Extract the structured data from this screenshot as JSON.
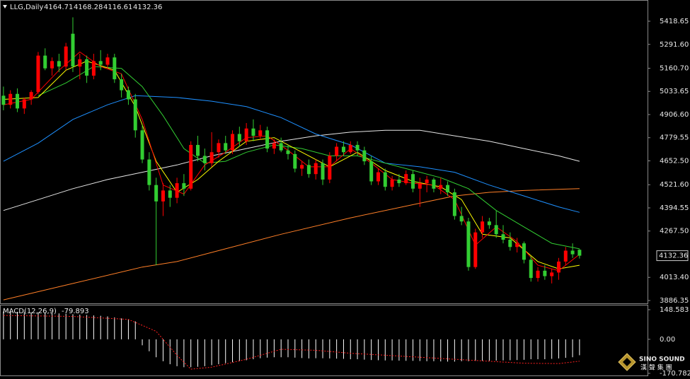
{
  "chart_data": [
    {
      "type": "candlestick",
      "title": "LLG,Daily",
      "header": [
        4164.71,
        4168.28,
        4116.61,
        4132.36
      ],
      "up_color": "#ff0000",
      "down_color": "#32cd32",
      "xlim": [
        -0.5,
        92.8
      ],
      "ylim": [
        3874.7,
        5523.4
      ],
      "yticks": [
        {
          "value": 5418.65,
          "label": "5418.65"
        },
        {
          "value": 5291.6,
          "label": "5291.60"
        },
        {
          "value": 5160.7,
          "label": "5160.70"
        },
        {
          "value": 5033.65,
          "label": "5033.65"
        },
        {
          "value": 4906.6,
          "label": "4906.60"
        },
        {
          "value": 4779.55,
          "label": "4779.55"
        },
        {
          "value": 4652.5,
          "label": "4652.50"
        },
        {
          "value": 4521.6,
          "label": "4521.60"
        },
        {
          "value": 4394.55,
          "label": "4394.55"
        },
        {
          "value": 4267.5,
          "label": "4267.50"
        },
        {
          "value": 4013.4,
          "label": "4013.40"
        },
        {
          "value": 3886.35,
          "label": "3886.35"
        }
      ],
      "candles": [
        [
          5010,
          5060,
          4930,
          4960
        ],
        [
          4960,
          5040,
          4940,
          5020
        ],
        [
          5020,
          5050,
          4920,
          4940
        ],
        [
          4940,
          5000,
          4910,
          4990
        ],
        [
          4990,
          5040,
          4960,
          5030
        ],
        [
          5030,
          5250,
          5020,
          5230
        ],
        [
          5230,
          5270,
          5150,
          5160
        ],
        [
          5160,
          5220,
          5120,
          5200
        ],
        [
          5200,
          5240,
          5140,
          5170
        ],
        [
          5170,
          5300,
          5150,
          5280
        ],
        [
          5350,
          5440,
          5140,
          5170
        ],
        [
          5170,
          5240,
          5100,
          5210
        ],
        [
          5210,
          5230,
          5080,
          5120
        ],
        [
          5120,
          5240,
          5100,
          5200
        ],
        [
          5200,
          5260,
          5150,
          5180
        ],
        [
          5180,
          5240,
          5160,
          5220
        ],
        [
          5220,
          5240,
          5080,
          5100
        ],
        [
          5100,
          5130,
          5000,
          5040
        ],
        [
          5040,
          5060,
          4960,
          4990
        ],
        [
          4990,
          5020,
          4780,
          4820
        ],
        [
          4820,
          4850,
          4640,
          4660
        ],
        [
          4660,
          4700,
          4490,
          4520
        ],
        [
          4520,
          4560,
          4080,
          4430
        ],
        [
          4430,
          4530,
          4350,
          4490
        ],
        [
          4490,
          4520,
          4400,
          4450
        ],
        [
          4450,
          4560,
          4420,
          4530
        ],
        [
          4530,
          4580,
          4460,
          4500
        ],
        [
          4500,
          4760,
          4490,
          4740
        ],
        [
          4740,
          4790,
          4650,
          4680
        ],
        [
          4680,
          4720,
          4600,
          4640
        ],
        [
          4640,
          4810,
          4620,
          4700
        ],
        [
          4700,
          4770,
          4670,
          4750
        ],
        [
          4750,
          4790,
          4690,
          4710
        ],
        [
          4710,
          4820,
          4690,
          4800
        ],
        [
          4800,
          4840,
          4730,
          4760
        ],
        [
          4760,
          4860,
          4740,
          4830
        ],
        [
          4830,
          4880,
          4760,
          4790
        ],
        [
          4790,
          4850,
          4770,
          4820
        ],
        [
          4820,
          4840,
          4700,
          4720
        ],
        [
          4720,
          4770,
          4690,
          4750
        ],
        [
          4750,
          4780,
          4700,
          4710
        ],
        [
          4710,
          4740,
          4660,
          4690
        ],
        [
          4690,
          4710,
          4590,
          4610
        ],
        [
          4610,
          4650,
          4570,
          4630
        ],
        [
          4630,
          4660,
          4560,
          4580
        ],
        [
          4580,
          4660,
          4550,
          4640
        ],
        [
          4640,
          4660,
          4520,
          4550
        ],
        [
          4550,
          4700,
          4530,
          4680
        ],
        [
          4680,
          4750,
          4650,
          4730
        ],
        [
          4730,
          4760,
          4680,
          4700
        ],
        [
          4700,
          4760,
          4690,
          4740
        ],
        [
          4740,
          4760,
          4680,
          4710
        ],
        [
          4710,
          4730,
          4630,
          4650
        ],
        [
          4650,
          4680,
          4520,
          4540
        ],
        [
          4540,
          4610,
          4520,
          4590
        ],
        [
          4590,
          4610,
          4490,
          4510
        ],
        [
          4510,
          4570,
          4490,
          4550
        ],
        [
          4550,
          4580,
          4510,
          4530
        ],
        [
          4530,
          4600,
          4520,
          4580
        ],
        [
          4580,
          4600,
          4480,
          4500
        ],
        [
          4500,
          4560,
          4400,
          4530
        ],
        [
          4530,
          4570,
          4480,
          4550
        ],
        [
          4550,
          4560,
          4480,
          4500
        ],
        [
          4500,
          4560,
          4470,
          4520
        ],
        [
          4520,
          4540,
          4460,
          4480
        ],
        [
          4480,
          4500,
          4330,
          4350
        ],
        [
          4350,
          4400,
          4300,
          4320
        ],
        [
          4320,
          4340,
          4050,
          4070
        ],
        [
          4070,
          4280,
          4060,
          4260
        ],
        [
          4260,
          4350,
          4230,
          4320
        ],
        [
          4320,
          4340,
          4280,
          4300
        ],
        [
          4300,
          4380,
          4230,
          4250
        ],
        [
          4250,
          4300,
          4200,
          4220
        ],
        [
          4220,
          4260,
          4160,
          4180
        ],
        [
          4180,
          4230,
          4150,
          4200
        ],
        [
          4200,
          4210,
          4090,
          4110
        ],
        [
          4110,
          4130,
          3990,
          4010
        ],
        [
          4010,
          4070,
          3990,
          4050
        ],
        [
          4050,
          4080,
          4000,
          4020
        ],
        [
          4020,
          4060,
          3980,
          4040
        ],
        [
          4040,
          4120,
          4000,
          4100
        ],
        [
          4100,
          4180,
          4080,
          4160
        ],
        [
          4160,
          4200,
          4120,
          4140
        ],
        [
          4164.71,
          4168.28,
          4116.61,
          4132.36
        ]
      ],
      "lines": [
        {
          "color": "#ff7f27",
          "x": [
            0,
            10,
            20,
            25,
            30,
            40,
            50,
            60,
            65,
            70,
            75,
            83
          ],
          "values": [
            3890,
            3980,
            4070,
            4100,
            4150,
            4250,
            4340,
            4420,
            4460,
            4480,
            4490,
            4500
          ]
        },
        {
          "color": "#e6e6e6",
          "x": [
            0,
            5,
            10,
            15,
            20,
            25,
            30,
            35,
            40,
            45,
            50,
            55,
            60,
            65,
            70,
            75,
            80,
            83
          ],
          "values": [
            4380,
            4440,
            4500,
            4550,
            4590,
            4630,
            4680,
            4720,
            4760,
            4790,
            4810,
            4820,
            4820,
            4790,
            4760,
            4720,
            4680,
            4650
          ]
        },
        {
          "color": "#1e90ff",
          "x": [
            0,
            5,
            10,
            15,
            19,
            25,
            30,
            35,
            40,
            45,
            50,
            55,
            60,
            65,
            70,
            75,
            80,
            83
          ],
          "values": [
            4650,
            4750,
            4880,
            4960,
            5010,
            5000,
            4980,
            4950,
            4890,
            4800,
            4740,
            4640,
            4620,
            4590,
            4520,
            4460,
            4400,
            4370
          ]
        },
        {
          "color": "#32cd32",
          "x": [
            5,
            9,
            13,
            17,
            20,
            23,
            26,
            29,
            32,
            35,
            39,
            43,
            47,
            51,
            55,
            59,
            63,
            67,
            71,
            75,
            79,
            83
          ],
          "values": [
            5010,
            5080,
            5170,
            5160,
            5060,
            4900,
            4720,
            4640,
            4650,
            4700,
            4740,
            4720,
            4680,
            4680,
            4640,
            4600,
            4560,
            4500,
            4380,
            4290,
            4200,
            4170
          ]
        },
        {
          "color": "#ffff00",
          "x": [
            0,
            5,
            9,
            12,
            16,
            19,
            22,
            25,
            28,
            31,
            35,
            39,
            43,
            47,
            51,
            55,
            59,
            63,
            66,
            69,
            73,
            77,
            80,
            83
          ],
          "values": [
            4990,
            5000,
            5150,
            5200,
            5150,
            4950,
            4650,
            4480,
            4550,
            4650,
            4760,
            4780,
            4700,
            4620,
            4700,
            4600,
            4540,
            4510,
            4440,
            4250,
            4230,
            4100,
            4060,
            4080
          ]
        },
        {
          "color": "#ff0000",
          "x": [
            0,
            4,
            8,
            11,
            14,
            17,
            20,
            23,
            26,
            29,
            32,
            35,
            38,
            41,
            44,
            47,
            50,
            53,
            56,
            59,
            62,
            65,
            68,
            71,
            74,
            77,
            80,
            83
          ],
          "values": [
            4960,
            4990,
            5150,
            5250,
            5170,
            5130,
            4880,
            4520,
            4470,
            4630,
            4700,
            4780,
            4790,
            4710,
            4620,
            4620,
            4720,
            4640,
            4550,
            4530,
            4520,
            4440,
            4190,
            4290,
            4210,
            4080,
            4050,
            4140
          ]
        }
      ]
    },
    {
      "type": "macd",
      "title": "MACD(12,26,9)",
      "xlim": [
        -0.5,
        92.8
      ],
      "ylim": [
        -177.9,
        169.9
      ],
      "yticks": [
        148.583,
        {
          "value": 0,
          "label": "0.00"
        },
        -170.782
      ],
      "color": "#ffffff",
      "values": [
        140,
        140,
        138,
        136,
        135,
        134,
        133,
        132,
        130,
        128,
        126,
        124,
        122,
        120,
        118,
        115,
        110,
        105,
        100,
        90,
        -30,
        -60,
        -90,
        -110,
        -125,
        -135,
        -140,
        -140,
        -138,
        -135,
        -130,
        -125,
        -120,
        -115,
        -110,
        -105,
        -100,
        -95,
        -92,
        -90,
        -90,
        -90,
        -92,
        -94,
        -96,
        -95,
        -95,
        -96,
        -97,
        -98,
        -100,
        -100,
        -102,
        -104,
        -105,
        -106,
        -106,
        -107,
        -108,
        -108,
        -109,
        -110,
        -110,
        -111,
        -112,
        -112,
        -110,
        -110,
        -108,
        -108,
        -108,
        -107,
        -106,
        -105,
        -104,
        -103,
        -100,
        -100,
        -100,
        -98,
        -96,
        -93,
        -90,
        -79.893
      ],
      "signal": {
        "color": "#ff2020",
        "x": [
          0,
          10,
          18,
          22,
          25,
          27,
          30,
          35,
          40,
          45,
          50,
          55,
          60,
          65,
          70,
          75,
          80,
          83
        ],
        "values": [
          120,
          115,
          100,
          40,
          -80,
          -150,
          -140,
          -100,
          -50,
          -55,
          -70,
          -80,
          -90,
          -100,
          -110,
          -120,
          -122,
          -109.784
        ]
      }
    }
  ],
  "logo": {
    "name": "SINO SOUND",
    "subtitle": "漢 聲 集 團"
  }
}
